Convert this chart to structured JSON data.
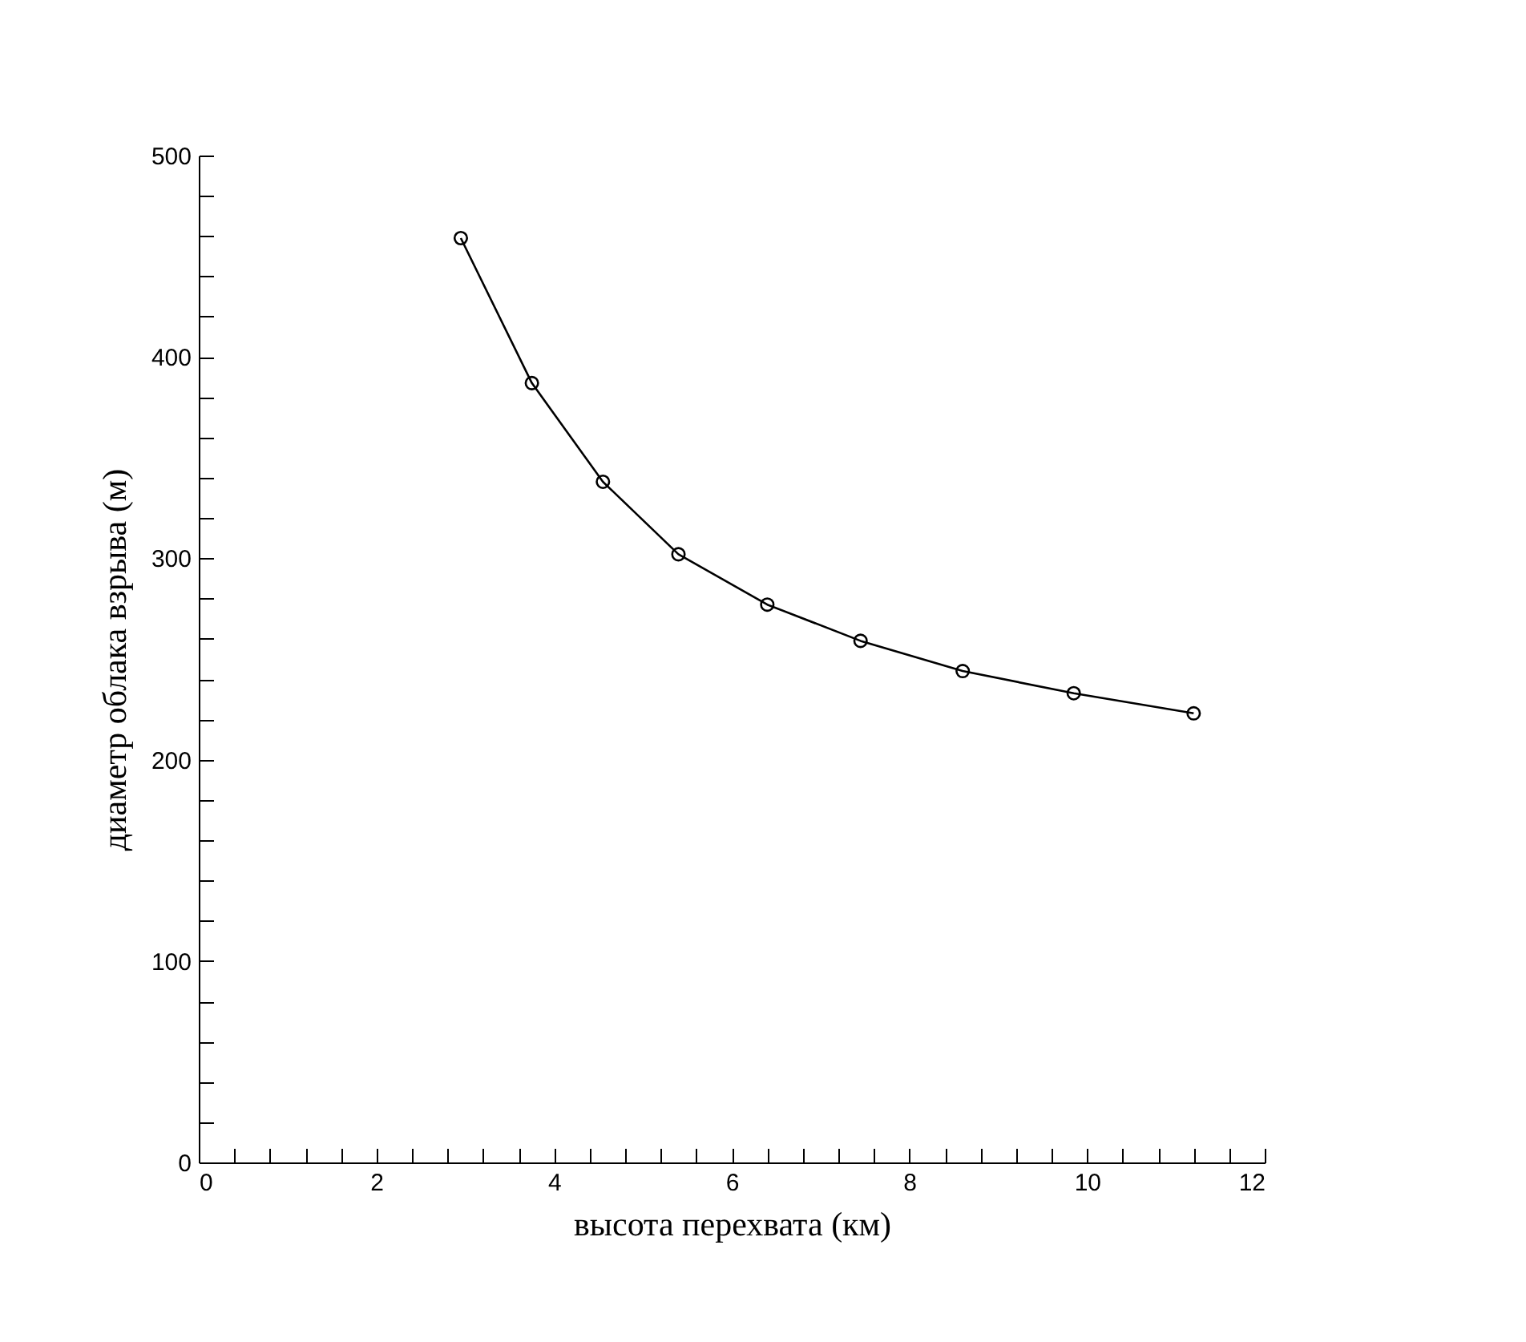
{
  "chart_data": {
    "type": "line",
    "xlabel": "высота перехвата (км)",
    "ylabel": "диаметр облака взрыва (м)",
    "x": [
      2.95,
      3.75,
      4.55,
      5.4,
      6.4,
      7.45,
      8.6,
      9.85,
      11.2
    ],
    "series": [
      {
        "color": "#000000",
        "values": [
          459,
          387,
          338,
          302,
          277,
          259,
          244,
          233,
          223
        ]
      }
    ],
    "xlim": [
      0,
      12
    ],
    "ylim": [
      0,
      500
    ],
    "xticks": [
      0,
      {
        "value": 0.4,
        "label": null
      },
      {
        "value": 0.8,
        "label": null
      },
      {
        "value": 1.2,
        "label": null
      },
      {
        "value": 1.6,
        "label": null
      },
      2,
      {
        "value": 2.4,
        "label": null
      },
      {
        "value": 2.8,
        "label": null
      },
      {
        "value": 3.2,
        "label": null
      },
      {
        "value": 3.6,
        "label": null
      },
      4,
      {
        "value": 4.4,
        "label": null
      },
      {
        "value": 4.8,
        "label": null
      },
      {
        "value": 5.2,
        "label": null
      },
      {
        "value": 5.6,
        "label": null
      },
      6,
      {
        "value": 6.4,
        "label": null
      },
      {
        "value": 6.8,
        "label": null
      },
      {
        "value": 7.2,
        "label": null
      },
      {
        "value": 7.6,
        "label": null
      },
      8,
      {
        "value": 8.4,
        "label": null
      },
      {
        "value": 8.8,
        "label": null
      },
      {
        "value": 9.2,
        "label": null
      },
      {
        "value": 9.6,
        "label": null
      },
      10,
      {
        "value": 10.4,
        "label": null
      },
      {
        "value": 10.8,
        "label": null
      },
      {
        "value": 11.2,
        "label": null
      },
      {
        "value": 11.6,
        "label": null
      },
      12
    ],
    "yticks": [
      0,
      {
        "value": 20,
        "label": null
      },
      {
        "value": 40,
        "label": null
      },
      {
        "value": 60,
        "label": null
      },
      {
        "value": 80,
        "label": null
      },
      100,
      {
        "value": 120,
        "label": null
      },
      {
        "value": 140,
        "label": null
      },
      {
        "value": 160,
        "label": null
      },
      {
        "value": 180,
        "label": null
      },
      200,
      {
        "value": 220,
        "label": null
      },
      {
        "value": 240,
        "label": null
      },
      {
        "value": 260,
        "label": null
      },
      {
        "value": 280,
        "label": null
      },
      300,
      {
        "value": 320,
        "label": null
      },
      {
        "value": 340,
        "label": null
      },
      {
        "value": 360,
        "label": null
      },
      {
        "value": 380,
        "label": null
      },
      400,
      {
        "value": 420,
        "label": null
      },
      {
        "value": 440,
        "label": null
      },
      {
        "value": 460,
        "label": null
      },
      {
        "value": 480,
        "label": null
      },
      500
    ],
    "marker": "circle",
    "line_style": "solid",
    "grid": false,
    "legend": false
  }
}
